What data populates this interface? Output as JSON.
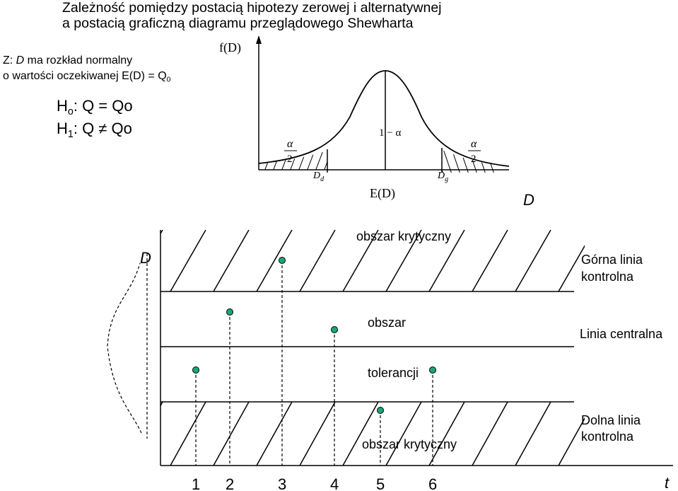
{
  "title": {
    "line1": "Zależność pomiędzy postacią hipotezy zerowej i alternatywnej",
    "line2": "a postacią graficzną diagramu przeglądowego Shewharta"
  },
  "assumption": {
    "line1_prefix": "Z: ",
    "line1_var": "D",
    "line1_rest": " ma rozkład normalny",
    "line2": "o wartości oczekiwanej E(D) = Q",
    "line2_sub": "0"
  },
  "hypotheses": {
    "h0_letter": "H",
    "h0_sub": "o",
    "h0_rest": ": Q = Qo",
    "h1_letter": "H",
    "h1_sub": "1",
    "h1_rest": ": Q ≠ Qo"
  },
  "distribution": {
    "y_label": "f(D)",
    "x_label": "D",
    "mean_label": "E(D)",
    "center_label": "1 − α",
    "alpha": "α",
    "two": "2",
    "d_letter": "D",
    "lower_sub": "d",
    "upper_sub": "g"
  },
  "control_chart": {
    "y_label": "D",
    "t_label": "t",
    "upper_line_label": [
      "Górna linia",
      "kontrolna"
    ],
    "center_line_label": "Linia centralna",
    "lower_line_label": [
      "Dolna linia",
      "kontrolna"
    ],
    "critical_region_top": "obszar krytyczny",
    "tolerance_line1": "obszar",
    "tolerance_line2": "tolerancji",
    "critical_region_bottom": "obszar krytyczny",
    "point_color": "#1aa67a",
    "samples": [
      {
        "t": "1",
        "value": "tolerance-low"
      },
      {
        "t": "2",
        "value": "tolerance-high"
      },
      {
        "t": "3",
        "value": "above-upper-limit"
      },
      {
        "t": "4",
        "value": "tolerance-mid"
      },
      {
        "t": "5",
        "value": "below-lower-limit"
      },
      {
        "t": "6",
        "value": "tolerance-low"
      }
    ]
  }
}
